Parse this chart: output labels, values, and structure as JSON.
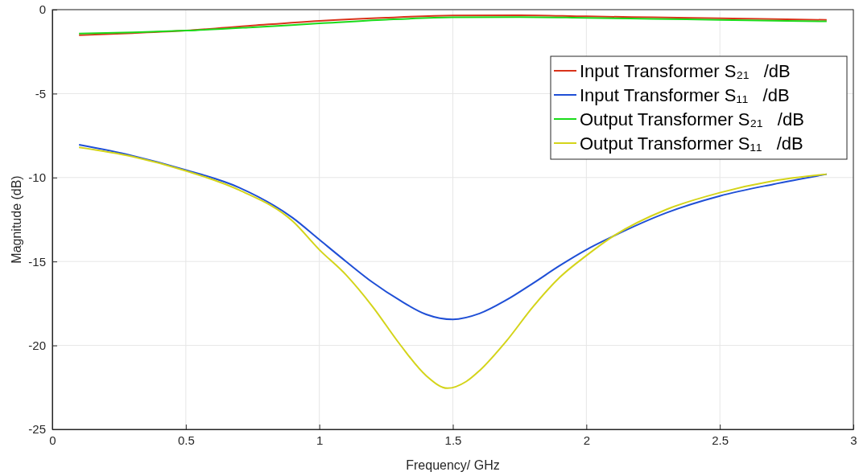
{
  "chart_data": {
    "type": "line",
    "xlabel": "Frequency/ GHz",
    "ylabel": "Magnitude (dB)",
    "xlim": [
      0,
      3
    ],
    "ylim": [
      -25,
      0
    ],
    "xticks": [
      0,
      0.5,
      1,
      1.5,
      2,
      2.5,
      3
    ],
    "yticks": [
      -25,
      -20,
      -15,
      -10,
      -5,
      0
    ],
    "grid": true,
    "legend": "top right",
    "line_style": "solid",
    "marker": "none",
    "series": [
      {
        "name": "Input Transformer S₂₁   /dB",
        "color": "#d9331a",
        "x": [
          0.1,
          0.3,
          0.5,
          0.75,
          1.0,
          1.25,
          1.5,
          1.75,
          2.0,
          2.25,
          2.5,
          2.75,
          2.9
        ],
        "values": [
          -1.52,
          -1.4,
          -1.25,
          -0.95,
          -0.67,
          -0.48,
          -0.35,
          -0.33,
          -0.4,
          -0.46,
          -0.52,
          -0.58,
          -0.61
        ]
      },
      {
        "name": "Input Transformer S₁₁   /dB",
        "color": "#1f4fd6",
        "x": [
          0.1,
          0.3,
          0.5,
          0.7,
          0.9,
          1.0,
          1.1,
          1.2,
          1.3,
          1.4,
          1.5,
          1.6,
          1.7,
          1.8,
          1.9,
          2.0,
          2.1,
          2.3,
          2.5,
          2.7,
          2.9
        ],
        "values": [
          -8.05,
          -8.7,
          -9.55,
          -10.6,
          -12.4,
          -13.7,
          -15,
          -16.25,
          -17.3,
          -18.15,
          -18.45,
          -18.1,
          -17.3,
          -16.3,
          -15.25,
          -14.3,
          -13.5,
          -12.1,
          -11.1,
          -10.4,
          -9.8
        ]
      },
      {
        "name": "Output Transformer S₂₁   /dB",
        "color": "#1adb1a",
        "x": [
          0.1,
          0.3,
          0.5,
          0.75,
          1.0,
          1.25,
          1.5,
          1.75,
          2.0,
          2.25,
          2.5,
          2.75,
          2.9
        ],
        "values": [
          -1.43,
          -1.35,
          -1.25,
          -1.05,
          -0.82,
          -0.6,
          -0.46,
          -0.44,
          -0.49,
          -0.55,
          -0.61,
          -0.67,
          -0.7
        ]
      },
      {
        "name": "Output Transformer S₁₁   /dB",
        "color": "#d4d41a",
        "x": [
          0.1,
          0.3,
          0.5,
          0.7,
          0.9,
          1.0,
          1.1,
          1.2,
          1.3,
          1.4,
          1.48,
          1.55,
          1.6,
          1.7,
          1.8,
          1.9,
          2.0,
          2.1,
          2.3,
          2.5,
          2.7,
          2.9
        ],
        "values": [
          -8.2,
          -8.75,
          -9.6,
          -10.75,
          -12.6,
          -14.3,
          -15.8,
          -17.7,
          -19.9,
          -21.8,
          -22.55,
          -22.15,
          -21.5,
          -19.75,
          -17.7,
          -15.95,
          -14.65,
          -13.5,
          -11.9,
          -10.9,
          -10.2,
          -9.8
        ]
      }
    ]
  }
}
